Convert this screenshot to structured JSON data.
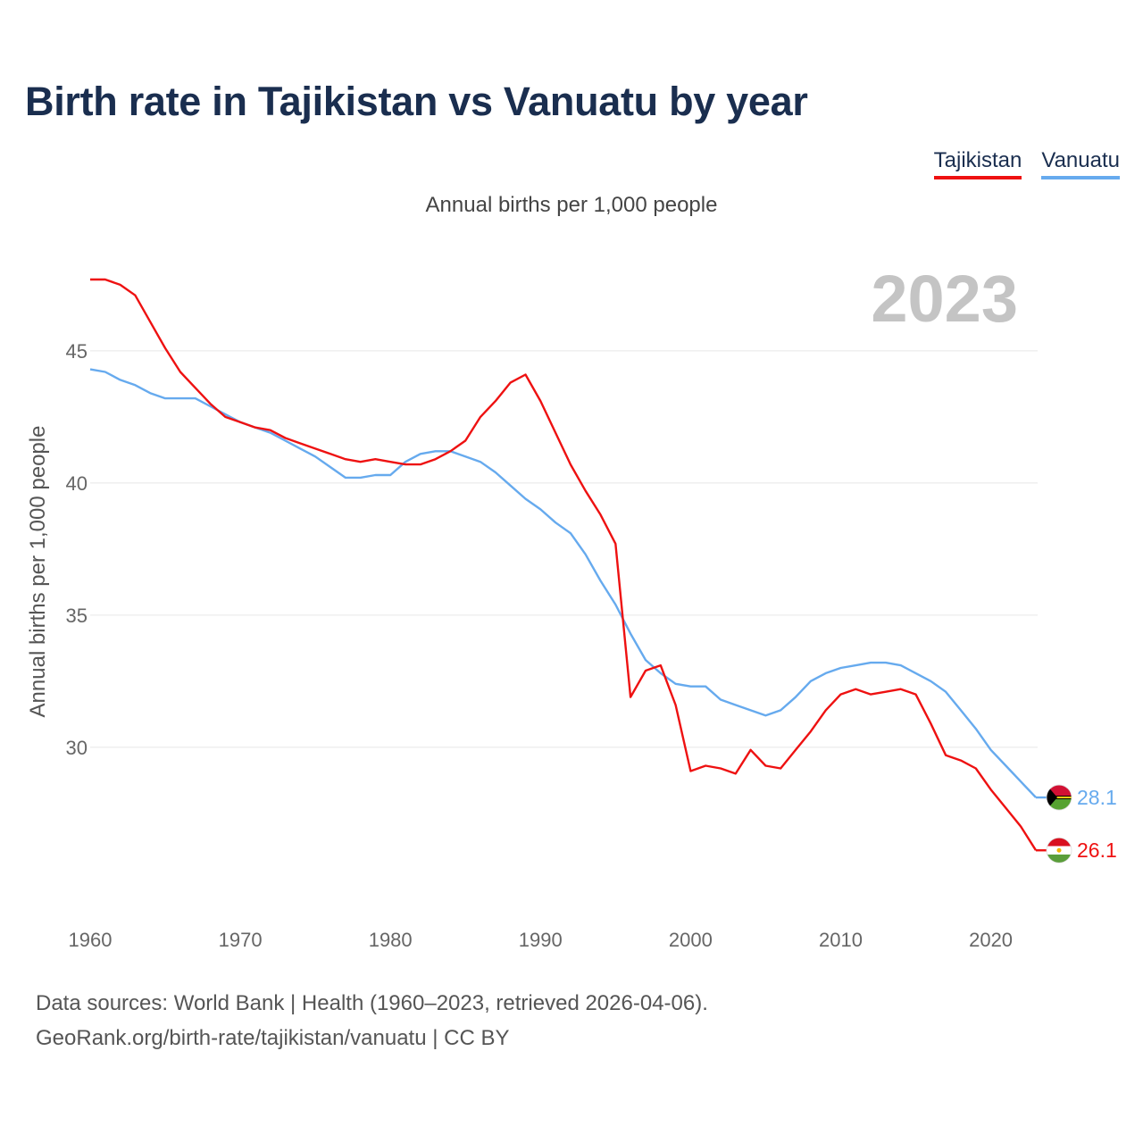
{
  "title": "Birth rate in Tajikistan vs Vanuatu by year",
  "subtitle": "Annual births per 1,000 people",
  "year_label": "2023",
  "legend": [
    {
      "name": "Tajikistan",
      "color": "#ee1111"
    },
    {
      "name": "Vanuatu",
      "color": "#66aaee"
    }
  ],
  "footer": {
    "line1": "Data sources: World Bank | Health (1960–2023, retrieved 2026-04-06).",
    "line2": "GeoRank.org/birth-rate/tajikistan/vanuatu | CC BY"
  },
  "chart_data": {
    "type": "line",
    "title": "Birth rate in Tajikistan vs Vanuatu by year",
    "xlabel": "",
    "ylabel": "Annual births per 1,000 people",
    "xlim": [
      1960,
      2023
    ],
    "ylim": [
      25.5,
      47.8
    ],
    "grid": true,
    "x_ticks": [
      1960,
      1970,
      1980,
      1990,
      2000,
      2010,
      2020
    ],
    "y_ticks": [
      30,
      35,
      40,
      45
    ],
    "x": [
      1960,
      1961,
      1962,
      1963,
      1964,
      1965,
      1966,
      1967,
      1968,
      1969,
      1970,
      1971,
      1972,
      1973,
      1974,
      1975,
      1976,
      1977,
      1978,
      1979,
      1980,
      1981,
      1982,
      1983,
      1984,
      1985,
      1986,
      1987,
      1988,
      1989,
      1990,
      1991,
      1992,
      1993,
      1994,
      1995,
      1996,
      1997,
      1998,
      1999,
      2000,
      2001,
      2002,
      2003,
      2004,
      2005,
      2006,
      2007,
      2008,
      2009,
      2010,
      2011,
      2012,
      2013,
      2014,
      2015,
      2016,
      2017,
      2018,
      2019,
      2020,
      2021,
      2022,
      2023
    ],
    "series": [
      {
        "name": "Tajikistan",
        "color": "#ee1111",
        "end_label": "26.1",
        "values": [
          47.7,
          47.7,
          47.5,
          47.1,
          46.1,
          45.1,
          44.2,
          43.6,
          43.0,
          42.5,
          42.3,
          42.1,
          42.0,
          41.7,
          41.5,
          41.3,
          41.1,
          40.9,
          40.8,
          40.9,
          40.8,
          40.7,
          40.7,
          40.9,
          41.2,
          41.6,
          42.5,
          43.1,
          43.8,
          44.1,
          43.1,
          41.9,
          40.7,
          39.7,
          38.8,
          37.7,
          31.9,
          32.9,
          33.1,
          31.6,
          29.1,
          29.3,
          29.2,
          29.0,
          29.9,
          29.3,
          29.2,
          29.9,
          30.6,
          31.4,
          32.0,
          32.2,
          32.0,
          32.1,
          32.2,
          32.0,
          30.9,
          29.7,
          29.5,
          29.2,
          28.4,
          27.7,
          27.0,
          26.1
        ]
      },
      {
        "name": "Vanuatu",
        "color": "#66aaee",
        "end_label": "28.1",
        "values": [
          44.3,
          44.2,
          43.9,
          43.7,
          43.4,
          43.2,
          43.2,
          43.2,
          42.9,
          42.6,
          42.3,
          42.1,
          41.9,
          41.6,
          41.3,
          41.0,
          40.6,
          40.2,
          40.2,
          40.3,
          40.3,
          40.8,
          41.1,
          41.2,
          41.2,
          41.0,
          40.8,
          40.4,
          39.9,
          39.4,
          39.0,
          38.5,
          38.1,
          37.3,
          36.3,
          35.4,
          34.3,
          33.3,
          32.8,
          32.4,
          32.3,
          32.3,
          31.8,
          31.6,
          31.4,
          31.2,
          31.4,
          31.9,
          32.5,
          32.8,
          33.0,
          33.1,
          33.2,
          33.2,
          33.1,
          32.8,
          32.5,
          32.1,
          31.4,
          30.7,
          29.9,
          29.3,
          28.7,
          28.1
        ]
      }
    ]
  }
}
